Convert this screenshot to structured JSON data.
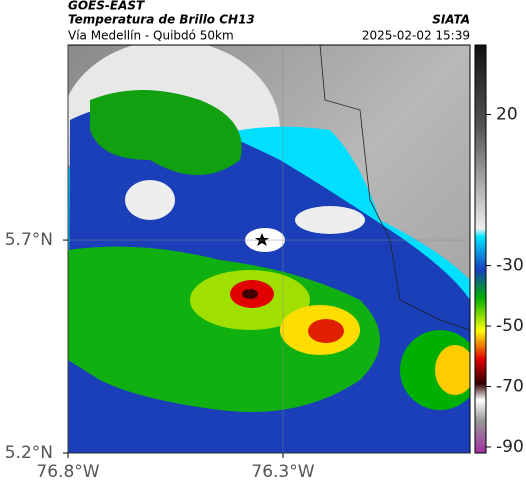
{
  "header": {
    "source": "GOES-EAST",
    "product": "Temperatura de Brillo CH13",
    "agency": "SIATA",
    "route": "Vía Medellín - Quibdó 50km",
    "timestamp": "2025-02-02 15:39"
  },
  "map": {
    "xlim": [
      -76.8,
      -75.865
    ],
    "ylim": [
      5.2,
      6.158
    ],
    "xticks": [
      {
        "value": -76.8,
        "label": "76.8°W"
      },
      {
        "value": -76.3,
        "label": "76.3°W"
      }
    ],
    "yticks": [
      {
        "value": 5.2,
        "label": "5.2°N"
      },
      {
        "value": 5.7,
        "label": "5.7°N"
      }
    ],
    "grid": true
  },
  "colorbar": {
    "range": [
      -92,
      43
    ],
    "ticks": [
      20,
      -30,
      -50,
      -70,
      -90
    ]
  }
}
